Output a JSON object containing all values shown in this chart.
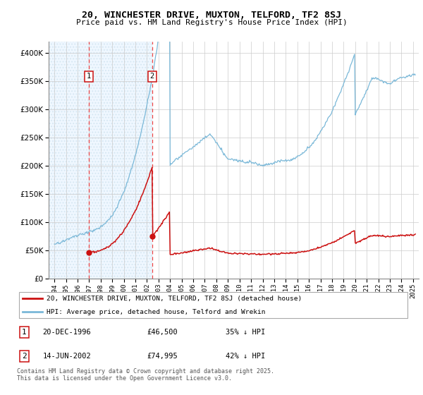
{
  "title_line1": "20, WINCHESTER DRIVE, MUXTON, TELFORD, TF2 8SJ",
  "title_line2": "Price paid vs. HM Land Registry's House Price Index (HPI)",
  "legend_line1": "20, WINCHESTER DRIVE, MUXTON, TELFORD, TF2 8SJ (detached house)",
  "legend_line2": "HPI: Average price, detached house, Telford and Wrekin",
  "footnote": "Contains HM Land Registry data © Crown copyright and database right 2025.\nThis data is licensed under the Open Government Licence v3.0.",
  "table_rows": [
    {
      "num": "1",
      "date": "20-DEC-1996",
      "price": "£46,500",
      "note": "35% ↓ HPI"
    },
    {
      "num": "2",
      "date": "14-JUN-2002",
      "price": "£74,995",
      "note": "42% ↓ HPI"
    }
  ],
  "sale_dates": [
    1996.97,
    2002.45
  ],
  "sale_prices": [
    46500,
    74995
  ],
  "hpi_color": "#7ab8d8",
  "price_color": "#cc1111",
  "ylim": [
    0,
    420000
  ],
  "yticks": [
    0,
    50000,
    100000,
    150000,
    200000,
    250000,
    300000,
    350000,
    400000
  ],
  "xlim_left": 1993.5,
  "xlim_right": 2025.5,
  "xticks": [
    1994,
    1995,
    1996,
    1997,
    1998,
    1999,
    2000,
    2001,
    2002,
    2003,
    2004,
    2005,
    2006,
    2007,
    2008,
    2009,
    2010,
    2011,
    2012,
    2013,
    2014,
    2015,
    2016,
    2017,
    2018,
    2019,
    2020,
    2021,
    2022,
    2023,
    2024,
    2025
  ],
  "hatch_region_end": 2002.45,
  "hatch_color": "#c8d8e8"
}
